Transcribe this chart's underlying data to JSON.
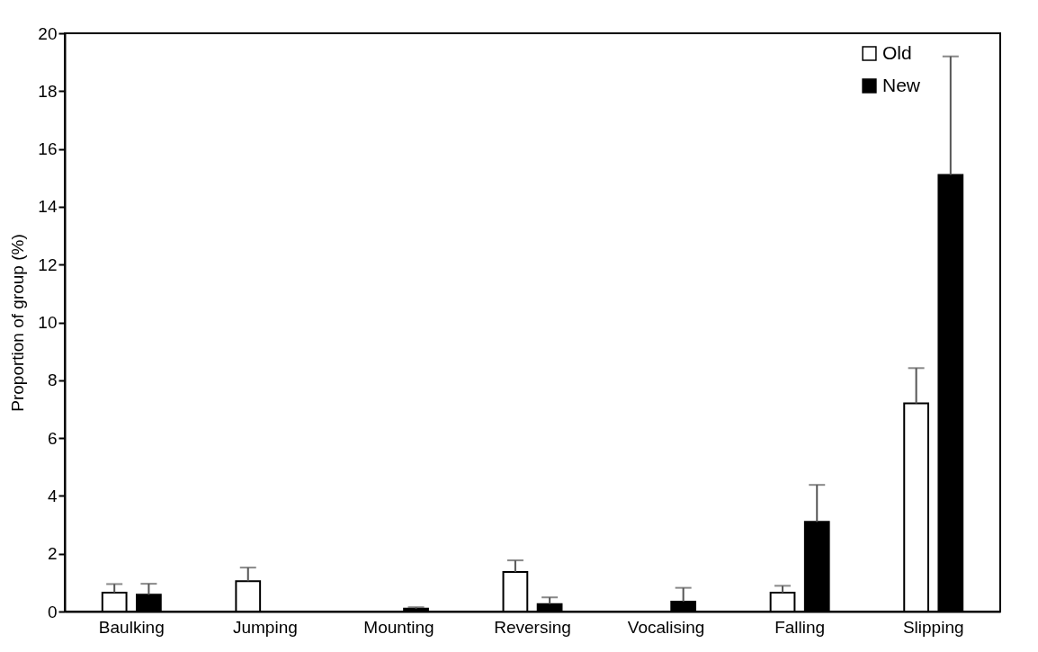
{
  "chart_data": {
    "type": "bar",
    "ylabel": "Proportion of group (%)",
    "categories": [
      "Baulking",
      "Jumping",
      "Mounting",
      "Reversing",
      "Vocalising",
      "Falling",
      "Slipping"
    ],
    "series": [
      {
        "name": "Old",
        "color": "#ffffff",
        "values": [
          0.65,
          1.05,
          null,
          1.37,
          null,
          0.65,
          7.2
        ],
        "errors": [
          0.3,
          0.47,
          null,
          0.4,
          null,
          0.24,
          1.22
        ]
      },
      {
        "name": "New",
        "color": "#000000",
        "values": [
          0.58,
          null,
          0.1,
          0.26,
          0.34,
          3.1,
          15.1
        ],
        "errors": [
          0.38,
          null,
          0.05,
          0.23,
          0.48,
          1.28,
          4.1
        ]
      }
    ],
    "ylim": [
      0,
      20
    ],
    "yticks": [
      0,
      2,
      4,
      6,
      8,
      10,
      12,
      14,
      16,
      18,
      20
    ],
    "grid": false,
    "legend": "top right"
  }
}
